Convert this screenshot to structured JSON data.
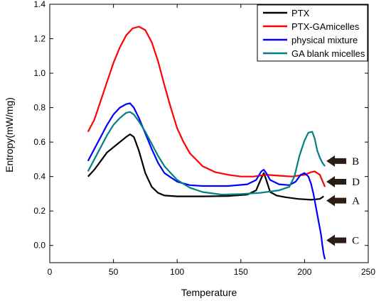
{
  "chart_data": {
    "type": "line",
    "xlabel": "Temperature",
    "ylabel": "Entropy(mW/mg)",
    "xlim": [
      0,
      250
    ],
    "ylim": [
      -0.1,
      1.4
    ],
    "x_ticks": [
      0,
      50,
      100,
      150,
      200,
      250
    ],
    "y_ticks": [
      0.0,
      0.2,
      0.4,
      0.6,
      0.8,
      1.0,
      1.2,
      1.4
    ],
    "y_tick_labels": [
      "0.0",
      "0.2",
      "0.4",
      "0.6",
      "0.8",
      "1.0",
      "1.2",
      "1.4"
    ],
    "grid": false,
    "legend_position": "top-right",
    "series": [
      {
        "name": "PTX",
        "color": "#000000",
        "points": [
          [
            30,
            0.4
          ],
          [
            35,
            0.44
          ],
          [
            40,
            0.49
          ],
          [
            45,
            0.54
          ],
          [
            50,
            0.57
          ],
          [
            55,
            0.6
          ],
          [
            60,
            0.63
          ],
          [
            63,
            0.645
          ],
          [
            66,
            0.63
          ],
          [
            70,
            0.55
          ],
          [
            75,
            0.42
          ],
          [
            80,
            0.34
          ],
          [
            85,
            0.305
          ],
          [
            90,
            0.29
          ],
          [
            100,
            0.285
          ],
          [
            120,
            0.285
          ],
          [
            140,
            0.287
          ],
          [
            155,
            0.295
          ],
          [
            162,
            0.32
          ],
          [
            166,
            0.39
          ],
          [
            168,
            0.42
          ],
          [
            170,
            0.38
          ],
          [
            173,
            0.31
          ],
          [
            178,
            0.29
          ],
          [
            185,
            0.28
          ],
          [
            195,
            0.27
          ],
          [
            205,
            0.265
          ],
          [
            212,
            0.27
          ],
          [
            215,
            0.285
          ]
        ]
      },
      {
        "name": "PTX-GAmicelles",
        "color": "#ff0000",
        "points": [
          [
            30,
            0.66
          ],
          [
            35,
            0.73
          ],
          [
            40,
            0.84
          ],
          [
            45,
            0.95
          ],
          [
            50,
            1.06
          ],
          [
            55,
            1.15
          ],
          [
            60,
            1.22
          ],
          [
            65,
            1.26
          ],
          [
            70,
            1.27
          ],
          [
            75,
            1.25
          ],
          [
            80,
            1.18
          ],
          [
            85,
            1.07
          ],
          [
            90,
            0.93
          ],
          [
            95,
            0.8
          ],
          [
            100,
            0.68
          ],
          [
            105,
            0.6
          ],
          [
            110,
            0.535
          ],
          [
            120,
            0.46
          ],
          [
            130,
            0.425
          ],
          [
            140,
            0.41
          ],
          [
            150,
            0.4
          ],
          [
            160,
            0.4
          ],
          [
            170,
            0.41
          ],
          [
            180,
            0.405
          ],
          [
            190,
            0.4
          ],
          [
            200,
            0.41
          ],
          [
            205,
            0.425
          ],
          [
            208,
            0.43
          ],
          [
            212,
            0.41
          ],
          [
            216,
            0.34
          ]
        ]
      },
      {
        "name": "physical mixture",
        "color": "#0000ff",
        "points": [
          [
            30,
            0.49
          ],
          [
            35,
            0.56
          ],
          [
            40,
            0.63
          ],
          [
            45,
            0.7
          ],
          [
            50,
            0.76
          ],
          [
            55,
            0.8
          ],
          [
            60,
            0.82
          ],
          [
            63,
            0.825
          ],
          [
            66,
            0.8
          ],
          [
            70,
            0.74
          ],
          [
            75,
            0.65
          ],
          [
            80,
            0.56
          ],
          [
            85,
            0.48
          ],
          [
            90,
            0.42
          ],
          [
            100,
            0.37
          ],
          [
            110,
            0.35
          ],
          [
            120,
            0.345
          ],
          [
            140,
            0.345
          ],
          [
            155,
            0.355
          ],
          [
            162,
            0.38
          ],
          [
            166,
            0.43
          ],
          [
            168,
            0.44
          ],
          [
            170,
            0.42
          ],
          [
            173,
            0.38
          ],
          [
            180,
            0.355
          ],
          [
            188,
            0.35
          ],
          [
            193,
            0.37
          ],
          [
            197,
            0.41
          ],
          [
            200,
            0.42
          ],
          [
            203,
            0.4
          ],
          [
            205,
            0.36
          ],
          [
            207,
            0.3
          ],
          [
            209,
            0.22
          ],
          [
            211,
            0.14
          ],
          [
            213,
            0.06
          ],
          [
            214,
            0.0
          ],
          [
            215,
            -0.05
          ],
          [
            216,
            -0.08
          ]
        ]
      },
      {
        "name": "GA blank micelles",
        "color": "#008080",
        "points": [
          [
            30,
            0.43
          ],
          [
            35,
            0.5
          ],
          [
            40,
            0.57
          ],
          [
            45,
            0.64
          ],
          [
            50,
            0.7
          ],
          [
            55,
            0.74
          ],
          [
            60,
            0.77
          ],
          [
            63,
            0.775
          ],
          [
            66,
            0.76
          ],
          [
            70,
            0.72
          ],
          [
            75,
            0.66
          ],
          [
            80,
            0.59
          ],
          [
            85,
            0.52
          ],
          [
            90,
            0.46
          ],
          [
            100,
            0.38
          ],
          [
            110,
            0.335
          ],
          [
            120,
            0.31
          ],
          [
            135,
            0.295
          ],
          [
            150,
            0.298
          ],
          [
            165,
            0.305
          ],
          [
            180,
            0.32
          ],
          [
            188,
            0.34
          ],
          [
            192,
            0.4
          ],
          [
            196,
            0.52
          ],
          [
            200,
            0.61
          ],
          [
            203,
            0.655
          ],
          [
            206,
            0.66
          ],
          [
            208,
            0.62
          ],
          [
            210,
            0.55
          ],
          [
            212,
            0.51
          ],
          [
            214,
            0.48
          ],
          [
            216,
            0.46
          ]
        ]
      }
    ],
    "annotations": [
      {
        "label": "B",
        "arrow_tip": [
          216,
          0.49
        ]
      },
      {
        "label": "D",
        "arrow_tip": [
          216,
          0.37
        ]
      },
      {
        "label": "A",
        "arrow_tip": [
          216,
          0.26
        ]
      },
      {
        "label": "C",
        "arrow_tip": [
          216,
          0.03
        ]
      }
    ]
  }
}
